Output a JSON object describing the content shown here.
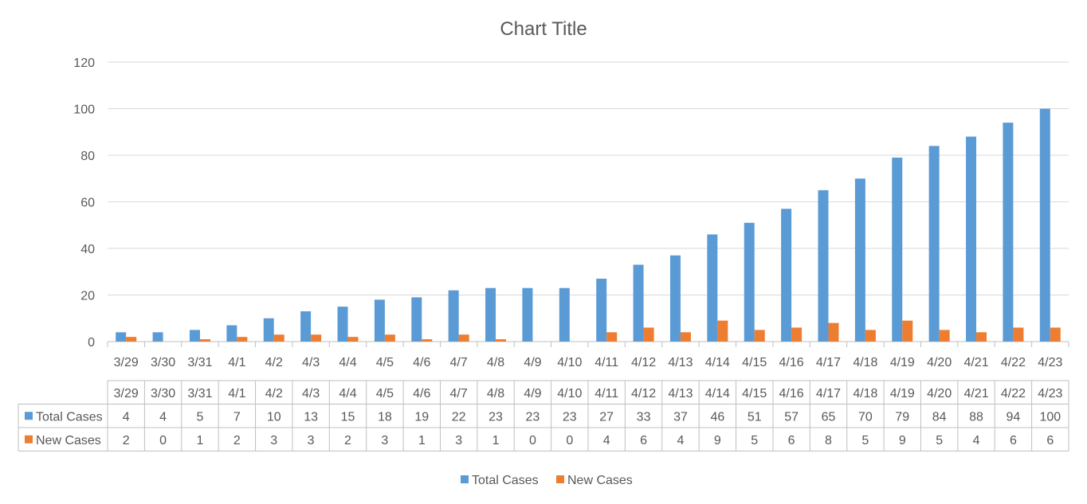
{
  "chart_data": {
    "type": "bar",
    "title": "Chart Title",
    "categories": [
      "3/29",
      "3/30",
      "3/31",
      "4/1",
      "4/2",
      "4/3",
      "4/4",
      "4/5",
      "4/6",
      "4/7",
      "4/8",
      "4/9",
      "4/10",
      "4/11",
      "4/12",
      "4/13",
      "4/14",
      "4/15",
      "4/16",
      "4/17",
      "4/18",
      "4/19",
      "4/20",
      "4/21",
      "4/22",
      "4/23"
    ],
    "series": [
      {
        "name": "Total Cases",
        "color": "#5B9BD5",
        "values": [
          4,
          4,
          5,
          7,
          10,
          13,
          15,
          18,
          19,
          22,
          23,
          23,
          23,
          27,
          33,
          37,
          46,
          51,
          57,
          65,
          70,
          79,
          84,
          88,
          94,
          100
        ]
      },
      {
        "name": "New Cases",
        "color": "#ED7D31",
        "values": [
          2,
          0,
          1,
          2,
          3,
          3,
          2,
          3,
          1,
          3,
          1,
          0,
          0,
          4,
          6,
          4,
          9,
          5,
          6,
          8,
          5,
          9,
          5,
          4,
          6,
          6
        ]
      }
    ],
    "ylim": [
      0,
      120
    ],
    "yticks": [
      0,
      20,
      40,
      60,
      80,
      100,
      120
    ],
    "grid": true,
    "legend": "bottom",
    "data_table": true
  }
}
